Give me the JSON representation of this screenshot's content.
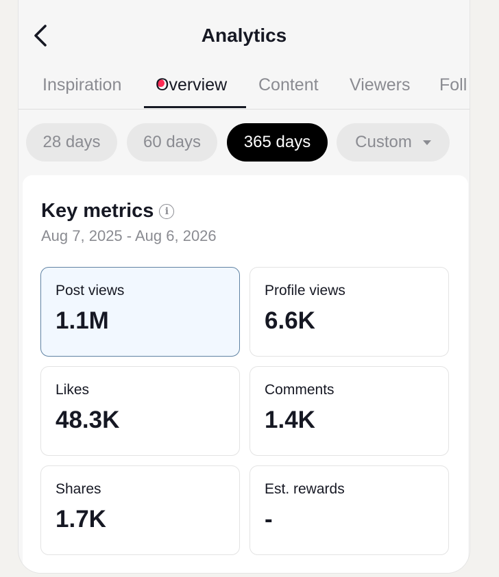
{
  "header": {
    "title": "Analytics",
    "back_icon": "chevron-left-icon"
  },
  "tabs": [
    {
      "label": "Inspiration",
      "has_notification": true
    },
    {
      "label": "Overview",
      "active": true
    },
    {
      "label": "Content"
    },
    {
      "label": "Viewers"
    },
    {
      "label": "Foll"
    }
  ],
  "ranges": [
    {
      "label": "28 days"
    },
    {
      "label": "60 days"
    },
    {
      "label": "365 days",
      "active": true
    },
    {
      "label": "Custom",
      "has_dropdown": true
    }
  ],
  "key_metrics": {
    "title": "Key metrics",
    "info_glyph": "i",
    "date_range": "Aug 7, 2025 - Aug 6, 2026",
    "items": [
      {
        "label": "Post views",
        "value": "1.1M",
        "selected": true
      },
      {
        "label": "Profile views",
        "value": "6.6K"
      },
      {
        "label": "Likes",
        "value": "48.3K"
      },
      {
        "label": "Comments",
        "value": "1.4K"
      },
      {
        "label": "Shares",
        "value": "1.7K"
      },
      {
        "label": "Est. rewards",
        "value": "-"
      }
    ]
  },
  "colors": {
    "accent": "#161823",
    "notification": "#fe2c55",
    "selected_bg": "#f2f8ff",
    "selected_border": "#5f82a3",
    "muted": "#8a8b91"
  }
}
